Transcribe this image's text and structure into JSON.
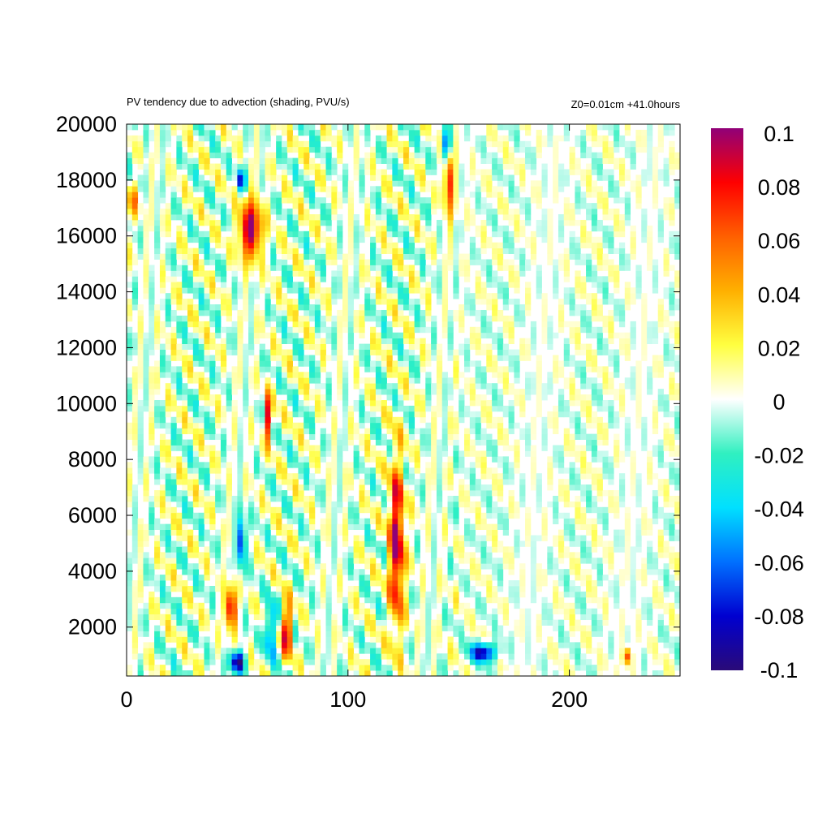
{
  "chart_data": {
    "type": "heatmap",
    "title": "PV tendency due to advection (shading, PVU/s)",
    "subtitle": "Z0=0.01cm   +41.0hours",
    "xlabel": "",
    "ylabel": "",
    "xlim": [
      0,
      250
    ],
    "ylim": [
      250,
      20000
    ],
    "x_ticks": [
      0,
      100,
      200
    ],
    "y_ticks": [
      2000,
      4000,
      6000,
      8000,
      10000,
      12000,
      14000,
      16000,
      18000,
      20000
    ],
    "colorbar": {
      "range": [
        -0.1,
        0.1
      ],
      "ticks": [
        "0.1",
        "0.08",
        "0.06",
        "0.04",
        "0.02",
        "0",
        "-0.02",
        "-0.04",
        "-0.06",
        "-0.08",
        "-0.1"
      ],
      "colors": [
        "#2a0a78",
        "#0000d0",
        "#0070ff",
        "#00e0ff",
        "#30f0c0",
        "#ffffff",
        "#ffff40",
        "#ffb000",
        "#ff6000",
        "#ff0000",
        "#900078"
      ]
    },
    "grid": false,
    "features": [
      {
        "kind": "positive",
        "x_range": [
          44,
          50
        ],
        "y_range": [
          1800,
          3600
        ],
        "value": 0.09
      },
      {
        "kind": "negative",
        "x_range": [
          46,
          54
        ],
        "y_range": [
          300,
          1200
        ],
        "value": -0.1
      },
      {
        "kind": "negative",
        "x_range": [
          50,
          54
        ],
        "y_range": [
          4000,
          6200
        ],
        "value": -0.09
      },
      {
        "kind": "negative",
        "x_range": [
          63,
          67
        ],
        "y_range": [
          800,
          3000
        ],
        "value": -0.09
      },
      {
        "kind": "positive",
        "x_range": [
          70,
          75
        ],
        "y_range": [
          800,
          3000
        ],
        "value": 0.1
      },
      {
        "kind": "positive",
        "x_range": [
          118,
          126
        ],
        "y_range": [
          1500,
          8500
        ],
        "value": 0.1
      },
      {
        "kind": "negative",
        "x_range": [
          154,
          168
        ],
        "y_range": [
          700,
          1500
        ],
        "value": -0.09
      },
      {
        "kind": "positive",
        "x_range": [
          50,
          62
        ],
        "y_range": [
          15000,
          17500
        ],
        "value": 0.1
      },
      {
        "kind": "negative",
        "x_range": [
          50,
          54
        ],
        "y_range": [
          17500,
          18500
        ],
        "value": -0.09
      },
      {
        "kind": "positive",
        "x_range": [
          62,
          66
        ],
        "y_range": [
          8500,
          10500
        ],
        "value": 0.09
      },
      {
        "kind": "negative",
        "x_range": [
          142,
          147
        ],
        "y_range": [
          18500,
          20000
        ],
        "value": -0.08
      },
      {
        "kind": "positive",
        "x_range": [
          143,
          148
        ],
        "y_range": [
          16500,
          19500
        ],
        "value": 0.08
      },
      {
        "kind": "positive",
        "x_range": [
          0,
          6
        ],
        "y_range": [
          16500,
          18000
        ],
        "value": 0.04
      },
      {
        "kind": "positive",
        "x_range": [
          224,
          228
        ],
        "y_range": [
          600,
          1300
        ],
        "value": 0.07
      }
    ]
  }
}
